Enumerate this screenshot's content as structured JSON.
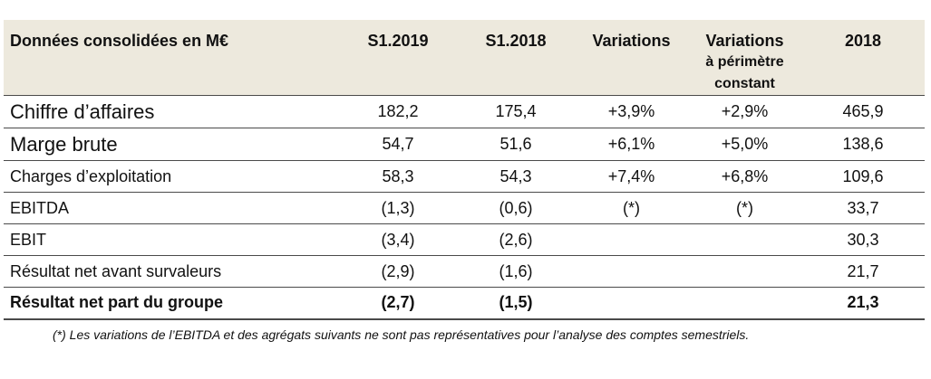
{
  "table": {
    "headers": {
      "label": "Données consolidées en M€",
      "s1_2019": "S1.2019",
      "s1_2018": "S1.2018",
      "variations": "Variations",
      "variations_constant_line1": "Variations",
      "variations_constant_line2": "à périmètre",
      "variations_constant_line3": "constant",
      "year_2018": "2018"
    },
    "rows": [
      {
        "label": "Chiffre d’affaires",
        "s1_2019": "182,2",
        "s1_2018": "175,4",
        "variations": "+3,9%",
        "variations_constant": "+2,9%",
        "year_2018": "465,9"
      },
      {
        "label": "Marge brute",
        "s1_2019": "54,7",
        "s1_2018": "51,6",
        "variations": "+6,1%",
        "variations_constant": "+5,0%",
        "year_2018": "138,6"
      },
      {
        "label": "Charges d’exploitation",
        "s1_2019": "58,3",
        "s1_2018": "54,3",
        "variations": "+7,4%",
        "variations_constant": "+6,8%",
        "year_2018": "109,6"
      },
      {
        "label": "EBITDA",
        "s1_2019": "(1,3)",
        "s1_2018": "(0,6)",
        "variations": "(*)",
        "variations_constant": "(*)",
        "year_2018": "33,7"
      },
      {
        "label": "EBIT",
        "s1_2019": "(3,4)",
        "s1_2018": "(2,6)",
        "variations": "",
        "variations_constant": "",
        "year_2018": "30,3"
      },
      {
        "label": "Résultat net avant survaleurs",
        "s1_2019": "(2,9)",
        "s1_2018": "(1,6)",
        "variations": "",
        "variations_constant": "",
        "year_2018": "21,7"
      },
      {
        "label": "Résultat net part du groupe",
        "s1_2019": "(2,7)",
        "s1_2018": "(1,5)",
        "variations": "",
        "variations_constant": "",
        "year_2018": "21,3"
      }
    ]
  },
  "footnote": "(*) Les variations de l’EBITDA et des agrégats suivants ne sont pas représentatives pour l’analyse des comptes semestriels.",
  "colors": {
    "header_background": "#ede9dd",
    "rule": "#4a4a4a"
  }
}
